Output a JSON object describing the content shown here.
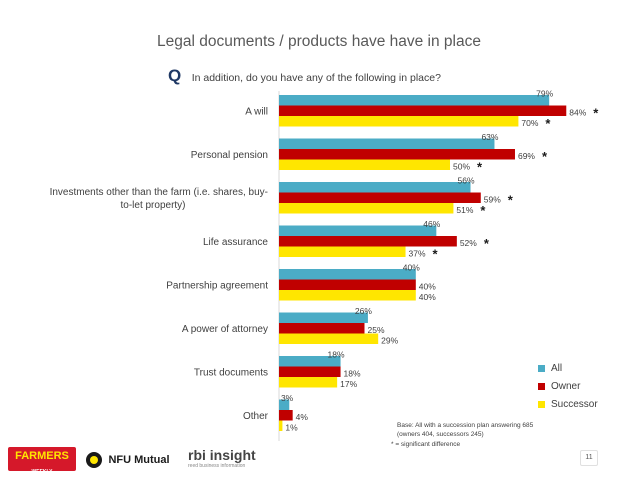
{
  "header": {
    "title": "Legal documents / products have have in place",
    "q_mark": "Q",
    "question": "In addition, do you have any of the following in place?"
  },
  "chart_data": {
    "type": "bar",
    "orientation": "horizontal",
    "categories": [
      [
        "A will"
      ],
      [
        "Personal pension"
      ],
      [
        "Investments other than the farm (i.e. shares, buy-",
        "to-let property)"
      ],
      [
        "Life assurance"
      ],
      [
        "Partnership agreement"
      ],
      [
        "A power of attorney"
      ],
      [
        "Trust documents"
      ],
      [
        "Other"
      ]
    ],
    "series": [
      {
        "name": "All",
        "color": "#4bacc6",
        "values": [
          79,
          63,
          56,
          46,
          40,
          26,
          18,
          3
        ],
        "significant": [
          false,
          false,
          false,
          false,
          false,
          false,
          false,
          false
        ]
      },
      {
        "name": "Owner",
        "color": "#c00000",
        "values": [
          84,
          69,
          59,
          52,
          40,
          25,
          18,
          4
        ],
        "significant": [
          true,
          true,
          true,
          true,
          false,
          false,
          false,
          false
        ]
      },
      {
        "name": "Successor",
        "color": "#ffe600",
        "values": [
          70,
          50,
          51,
          37,
          40,
          29,
          17,
          1
        ],
        "significant": [
          true,
          true,
          true,
          true,
          false,
          false,
          false,
          false
        ]
      }
    ],
    "value_suffix": "%",
    "significance_marker": "*",
    "xlim": [
      0,
      100
    ],
    "legend_position": "bottom-right"
  },
  "legend": {
    "items": [
      {
        "label": "All",
        "color": "#4bacc6"
      },
      {
        "label": "Owner",
        "color": "#c00000"
      },
      {
        "label": "Successor",
        "color": "#ffe600"
      }
    ]
  },
  "notes": {
    "base": "Base: All with a succession plan answering 685 (owners 404, successors 245)",
    "significance": "* = significant difference"
  },
  "footer": {
    "page_number": "11",
    "logo_farmers": "FARMERS",
    "logo_farmers_sub": "WEEKLY",
    "logo_nfu": "NFU Mutual",
    "logo_rbi": "rbi insight",
    "logo_rbi_sub": "reed business information"
  }
}
